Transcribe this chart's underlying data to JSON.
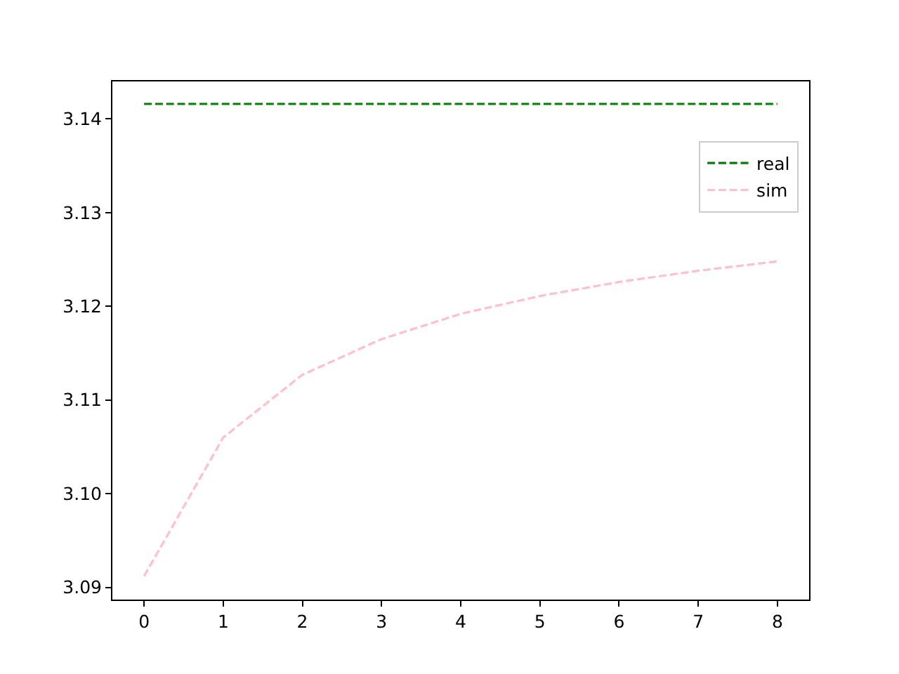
{
  "chart_data": {
    "type": "line",
    "x": [
      0,
      1,
      2,
      3,
      4,
      5,
      6,
      7,
      8
    ],
    "series": [
      {
        "name": "real",
        "color": "#008000",
        "values": [
          3.1416,
          3.1416,
          3.1416,
          3.1416,
          3.1416,
          3.1416,
          3.1416,
          3.1416,
          3.1416
        ]
      },
      {
        "name": "sim",
        "color": "#ffc0cb",
        "values": [
          3.0912,
          3.106,
          3.1127,
          3.1165,
          3.1192,
          3.1211,
          3.1226,
          3.1238,
          3.1248
        ]
      }
    ],
    "xlim": [
      -0.4,
      8.4
    ],
    "xticks": [
      0,
      1,
      2,
      3,
      4,
      5,
      6,
      7,
      8
    ],
    "ylim": [
      3.0887,
      3.144
    ],
    "yticks": [
      3.09,
      {
        "value": 3.1,
        "label": "3.10"
      },
      3.11,
      3.12,
      3.13,
      3.14
    ],
    "grid": false,
    "legend": "top right",
    "line_style": "dashed",
    "marker": "none"
  }
}
